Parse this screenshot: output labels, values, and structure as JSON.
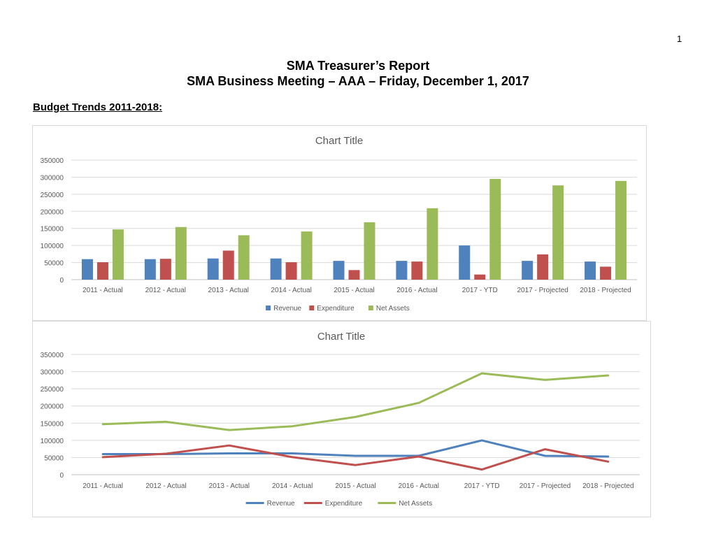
{
  "page": {
    "page_number": "1",
    "title_line1": "SMA Treasurer’s Report",
    "title_line2": "SMA Business Meeting – AAA – Friday, December 1, 2017",
    "section_heading": "Budget Trends 2011-2018:"
  },
  "chart_data": [
    {
      "type": "bar",
      "title": "Chart Title",
      "categories": [
        "2011 - Actual",
        "2012 - Actual",
        "2013 - Actual",
        "2014 - Actual",
        "2015 - Actual",
        "2016 - Actual",
        "2017 - YTD",
        "2017 - Projected",
        "2018 - Projected"
      ],
      "series": [
        {
          "name": "Revenue",
          "color": "#4f81bd",
          "values": [
            60000,
            60000,
            62000,
            62000,
            55000,
            55000,
            100000,
            55000,
            53000
          ]
        },
        {
          "name": "Expenditure",
          "color": "#c0504d",
          "values": [
            51000,
            61000,
            85000,
            51000,
            28000,
            53000,
            15000,
            74000,
            38000
          ]
        },
        {
          "name": "Net Assets",
          "color": "#9bbb59",
          "values": [
            147000,
            154000,
            130000,
            141000,
            168000,
            209000,
            295000,
            276000,
            289000
          ]
        }
      ],
      "yticks": [
        "0",
        "50000",
        "100000",
        "150000",
        "200000",
        "250000",
        "300000",
        "350000"
      ],
      "ylim": [
        0,
        350000
      ],
      "grid": true,
      "legend": "bottom"
    },
    {
      "type": "line",
      "title": "Chart Title",
      "categories": [
        "2011 - Actual",
        "2012 - Actual",
        "2013 - Actual",
        "2014 - Actual",
        "2015 - Actual",
        "2016 - Actual",
        "2017 - YTD",
        "2017 - Projected",
        "2018 - Projected"
      ],
      "series": [
        {
          "name": "Revenue",
          "color": "#4f81bd",
          "values": [
            60000,
            60000,
            62000,
            62000,
            55000,
            55000,
            100000,
            55000,
            53000
          ]
        },
        {
          "name": "Expenditure",
          "color": "#c0504d",
          "values": [
            51000,
            61000,
            85000,
            51000,
            28000,
            53000,
            15000,
            74000,
            38000
          ]
        },
        {
          "name": "Net Assets",
          "color": "#9bbb59",
          "values": [
            147000,
            154000,
            130000,
            141000,
            168000,
            209000,
            295000,
            276000,
            289000
          ]
        }
      ],
      "yticks": [
        "0",
        "50000",
        "100000",
        "150000",
        "200000",
        "250000",
        "300000",
        "350000"
      ],
      "ylim": [
        0,
        350000
      ],
      "grid": true,
      "legend": "bottom"
    }
  ]
}
